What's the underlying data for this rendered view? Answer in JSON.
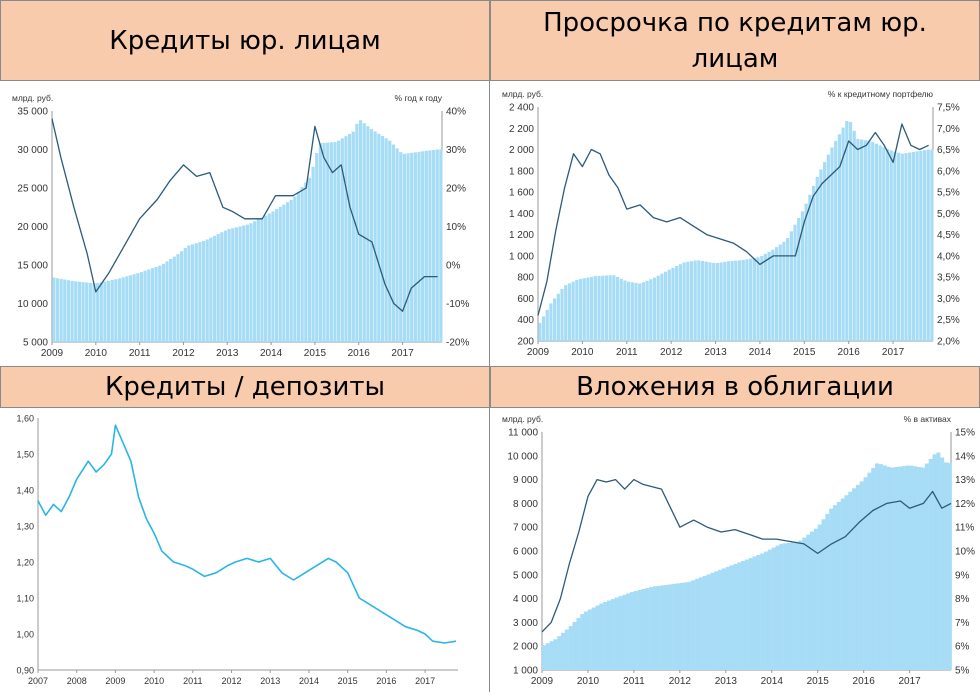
{
  "headers": {
    "top_left": "Кредиты юр. лицам",
    "top_right": "Просрочка по кредитам юр. лицам",
    "bottom_left": "Кредиты / депозиты",
    "bottom_right": "Вложения в облигации"
  },
  "colors": {
    "bar": "#a6dcf5",
    "line_dark": "#2c5a7a",
    "line_light": "#29b6e6",
    "header_bg": "#f8cbad"
  },
  "chart_data": [
    {
      "id": "loans",
      "type": "bar",
      "left_unit": "млрд. руб.",
      "right_unit": "% год к году",
      "x_ticks": [
        "2009",
        "2010",
        "2011",
        "2012",
        "2013",
        "2014",
        "2015",
        "2016",
        "2017"
      ],
      "y_left_ticks": [
        "5 000",
        "10 000",
        "15 000",
        "20 000",
        "25 000",
        "30 000",
        "35 000"
      ],
      "y_right_ticks": [
        "-20%",
        "-10%",
        "0%",
        "10%",
        "20%",
        "30%",
        "40%"
      ],
      "ylim_left": [
        5000,
        35000
      ],
      "ylim_right": [
        -20,
        40
      ],
      "xlim": [
        2009.0,
        2017.9
      ],
      "bars": {
        "x": [
          2009.0,
          2009.5,
          2010.0,
          2010.5,
          2011.0,
          2011.5,
          2011.9,
          2012.1,
          2012.5,
          2013.0,
          2013.5,
          2014.0,
          2014.5,
          2014.9,
          2015.1,
          2015.5,
          2015.9,
          2016.0,
          2016.3,
          2016.7,
          2017.0,
          2017.5,
          2017.8
        ],
        "values": [
          13400,
          12900,
          12600,
          13200,
          14000,
          15000,
          16500,
          17500,
          18200,
          19600,
          20300,
          21800,
          23600,
          26500,
          30800,
          31000,
          32400,
          34000,
          32600,
          31200,
          29400,
          29800,
          30000
        ]
      },
      "line": {
        "x": [
          2009.0,
          2009.2,
          2009.5,
          2009.8,
          2010.0,
          2010.3,
          2010.7,
          2011.0,
          2011.4,
          2011.7,
          2012.0,
          2012.3,
          2012.6,
          2012.9,
          2013.1,
          2013.4,
          2013.8,
          2014.1,
          2014.5,
          2014.8,
          2015.0,
          2015.2,
          2015.4,
          2015.6,
          2015.8,
          2016.0,
          2016.3,
          2016.6,
          2016.8,
          2017.0,
          2017.2,
          2017.5,
          2017.8
        ],
        "values": [
          38,
          28,
          15,
          3,
          -7,
          -2,
          6,
          12,
          17,
          22,
          26,
          23,
          24,
          15,
          14,
          12,
          12,
          18,
          18,
          20,
          36,
          28,
          24,
          26,
          15,
          8,
          6,
          -5,
          -10,
          -12,
          -6,
          -3,
          -3
        ]
      }
    },
    {
      "id": "overdue",
      "type": "bar",
      "left_unit": "млрд. руб.",
      "right_unit": "% к кредитному портфелю",
      "x_ticks": [
        "2009",
        "2010",
        "2011",
        "2012",
        "2013",
        "2014",
        "2015",
        "2016",
        "2017"
      ],
      "y_left_ticks": [
        "200",
        "400",
        "600",
        "800",
        "1 000",
        "1 200",
        "1 400",
        "1 600",
        "1 800",
        "2 000",
        "2 200",
        "2 400"
      ],
      "y_right_ticks": [
        "2,0%",
        "2,5%",
        "3,0%",
        "3,5%",
        "4,0%",
        "4,5%",
        "5,0%",
        "5,5%",
        "6,0%",
        "6,5%",
        "7,0%",
        "7,5%"
      ],
      "ylim_left": [
        200,
        2400
      ],
      "ylim_right": [
        2.0,
        7.5
      ],
      "xlim": [
        2009.0,
        2017.9
      ],
      "bars": {
        "x": [
          2009.0,
          2009.3,
          2009.6,
          2009.9,
          2010.3,
          2010.7,
          2011.0,
          2011.3,
          2011.6,
          2012.0,
          2012.3,
          2012.6,
          2013.0,
          2013.3,
          2013.6,
          2014.0,
          2014.3,
          2014.6,
          2015.0,
          2015.3,
          2015.6,
          2016.0,
          2016.2,
          2016.5,
          2016.9,
          2017.2,
          2017.5,
          2017.8
        ],
        "values": [
          340,
          560,
          720,
          780,
          810,
          820,
          760,
          740,
          790,
          880,
          940,
          960,
          930,
          950,
          960,
          990,
          1060,
          1150,
          1450,
          1750,
          2000,
          2300,
          2100,
          2080,
          2000,
          1960,
          1980,
          2000
        ]
      },
      "line": {
        "x": [
          2009.0,
          2009.2,
          2009.4,
          2009.6,
          2009.8,
          2010.0,
          2010.2,
          2010.4,
          2010.6,
          2010.8,
          2011.0,
          2011.3,
          2011.6,
          2011.9,
          2012.2,
          2012.5,
          2012.8,
          2013.1,
          2013.4,
          2013.7,
          2014.0,
          2014.3,
          2014.6,
          2014.8,
          2015.0,
          2015.2,
          2015.4,
          2015.6,
          2015.8,
          2016.0,
          2016.2,
          2016.4,
          2016.6,
          2016.8,
          2017.0,
          2017.2,
          2017.4,
          2017.6,
          2017.8
        ],
        "values": [
          2.6,
          3.4,
          4.6,
          5.6,
          6.4,
          6.1,
          6.5,
          6.4,
          5.9,
          5.6,
          5.1,
          5.2,
          4.9,
          4.8,
          4.9,
          4.7,
          4.5,
          4.4,
          4.3,
          4.1,
          3.8,
          4.0,
          4.0,
          4.0,
          4.8,
          5.4,
          5.7,
          5.9,
          6.1,
          6.7,
          6.5,
          6.6,
          6.9,
          6.6,
          6.2,
          7.1,
          6.6,
          6.5,
          6.6
        ]
      }
    },
    {
      "id": "loans_deposits",
      "type": "line",
      "y_ticks": [
        "0,90",
        "1,00",
        "1,10",
        "1,20",
        "1,30",
        "1,40",
        "1,50",
        "1,60"
      ],
      "ylim": [
        0.9,
        1.6
      ],
      "x_ticks": [
        "2007",
        "2008",
        "2009",
        "2010",
        "2011",
        "2012",
        "2013",
        "2014",
        "2015",
        "2016",
        "2017"
      ],
      "xlim": [
        2007.0,
        2017.85
      ],
      "line": {
        "x": [
          2007.0,
          2007.2,
          2007.4,
          2007.6,
          2007.8,
          2008.0,
          2008.3,
          2008.5,
          2008.7,
          2008.9,
          2009.0,
          2009.2,
          2009.4,
          2009.6,
          2009.8,
          2010.0,
          2010.2,
          2010.5,
          2010.8,
          2011.0,
          2011.3,
          2011.6,
          2011.9,
          2012.1,
          2012.4,
          2012.7,
          2013.0,
          2013.3,
          2013.6,
          2013.9,
          2014.2,
          2014.5,
          2014.7,
          2015.0,
          2015.3,
          2015.6,
          2015.9,
          2016.2,
          2016.5,
          2016.8,
          2017.0,
          2017.2,
          2017.5,
          2017.8
        ],
        "values": [
          1.37,
          1.33,
          1.36,
          1.34,
          1.38,
          1.43,
          1.48,
          1.45,
          1.47,
          1.5,
          1.58,
          1.53,
          1.48,
          1.38,
          1.32,
          1.28,
          1.23,
          1.2,
          1.19,
          1.18,
          1.16,
          1.17,
          1.19,
          1.2,
          1.21,
          1.2,
          1.21,
          1.17,
          1.15,
          1.17,
          1.19,
          1.21,
          1.2,
          1.17,
          1.1,
          1.08,
          1.06,
          1.04,
          1.02,
          1.01,
          1.0,
          0.98,
          0.975,
          0.98
        ]
      }
    },
    {
      "id": "bonds",
      "type": "bar",
      "left_unit": "млрд. руб.",
      "right_unit": "% в активах",
      "x_ticks": [
        "2009",
        "2010",
        "2011",
        "2012",
        "2013",
        "2014",
        "2015",
        "2016",
        "2017"
      ],
      "y_left_ticks": [
        "1 000",
        "2 000",
        "3 000",
        "4 000",
        "5 000",
        "6 000",
        "7 000",
        "8 000",
        "9 000",
        "10 000",
        "11 000"
      ],
      "y_right_ticks": [
        "5%",
        "6%",
        "7%",
        "8%",
        "9%",
        "10%",
        "11%",
        "12%",
        "13%",
        "14%",
        "15%"
      ],
      "ylim_left": [
        1000,
        11000
      ],
      "ylim_right": [
        5,
        15
      ],
      "xlim": [
        2009.0,
        2017.9
      ],
      "bars": {
        "x": [
          2009.0,
          2009.3,
          2009.6,
          2009.9,
          2010.3,
          2010.7,
          2011.0,
          2011.4,
          2011.8,
          2012.2,
          2012.6,
          2013.0,
          2013.4,
          2013.8,
          2014.2,
          2014.6,
          2015.0,
          2015.3,
          2015.6,
          2016.0,
          2016.3,
          2016.6,
          2017.0,
          2017.3,
          2017.6,
          2017.8
        ],
        "values": [
          2000,
          2300,
          2800,
          3400,
          3800,
          4100,
          4300,
          4500,
          4600,
          4700,
          5000,
          5300,
          5600,
          5900,
          6300,
          6400,
          7000,
          7800,
          8300,
          9000,
          9700,
          9500,
          9600,
          9500,
          10200,
          9700
        ]
      },
      "line": {
        "x": [
          2009.0,
          2009.2,
          2009.4,
          2009.6,
          2009.8,
          2010.0,
          2010.2,
          2010.4,
          2010.6,
          2010.8,
          2011.0,
          2011.2,
          2011.4,
          2011.6,
          2011.8,
          2012.0,
          2012.3,
          2012.6,
          2012.9,
          2013.2,
          2013.5,
          2013.8,
          2014.1,
          2014.4,
          2014.7,
          2015.0,
          2015.3,
          2015.6,
          2015.9,
          2016.2,
          2016.5,
          2016.8,
          2017.0,
          2017.3,
          2017.5,
          2017.7,
          2017.9
        ],
        "values": [
          6.6,
          7.0,
          8.0,
          9.5,
          10.8,
          12.3,
          13.0,
          12.9,
          13.0,
          12.6,
          13.0,
          12.8,
          12.7,
          12.6,
          11.8,
          11.0,
          11.3,
          11.0,
          10.8,
          10.9,
          10.7,
          10.5,
          10.5,
          10.4,
          10.3,
          9.9,
          10.3,
          10.6,
          11.2,
          11.7,
          12.0,
          12.1,
          11.8,
          12.0,
          12.5,
          11.8,
          12.0
        ]
      }
    }
  ]
}
